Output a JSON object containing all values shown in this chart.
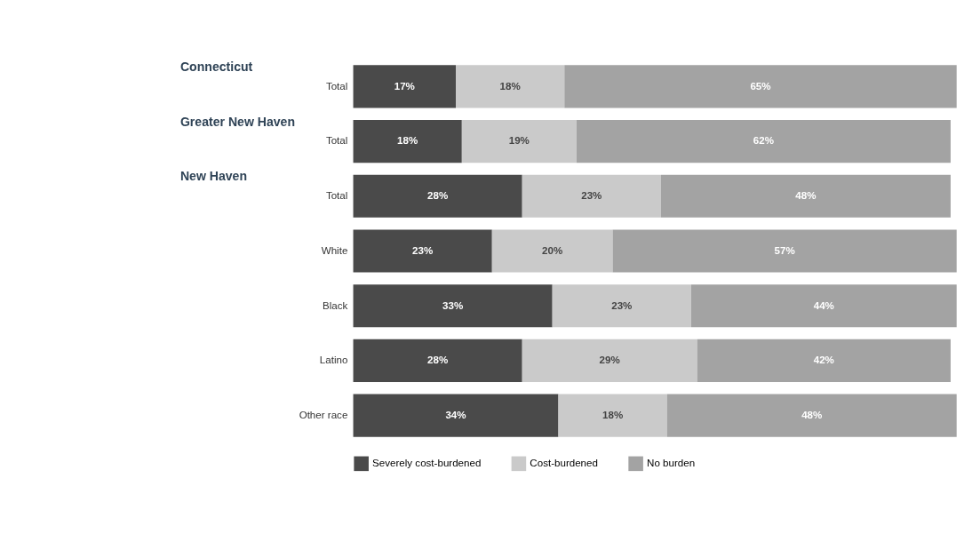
{
  "chart_data": {
    "type": "bar",
    "orientation": "horizontal",
    "stacked": true,
    "legend": "bottom",
    "categories": [
      "Total",
      "Total",
      "Total",
      "White",
      "Black",
      "Latino",
      "Other race"
    ],
    "annotations": [
      "Connecticut",
      "Greater New Haven",
      "New Haven"
    ],
    "series": [
      {
        "name": "Severely cost-burdened",
        "color": "#4a4a4a",
        "values": [
          17,
          18,
          28,
          23,
          33,
          28,
          34
        ],
        "value_labels": [
          "17%",
          "18%",
          "28%",
          "23%",
          "33%",
          "28%",
          "34%"
        ]
      },
      {
        "name": "Cost-burdened",
        "color": "#cacaca",
        "values": [
          18,
          19,
          23,
          20,
          23,
          29,
          18
        ],
        "value_labels": [
          "18%",
          "19%",
          "23%",
          "20%",
          "23%",
          "29%",
          "18%"
        ]
      },
      {
        "name": "No burden",
        "color": "#a3a3a3",
        "values": [
          65,
          62,
          48,
          57,
          44,
          42,
          48
        ],
        "value_labels": [
          "65%",
          "62%",
          "48%",
          "57%",
          "44%",
          "42%",
          "48%"
        ]
      }
    ]
  }
}
